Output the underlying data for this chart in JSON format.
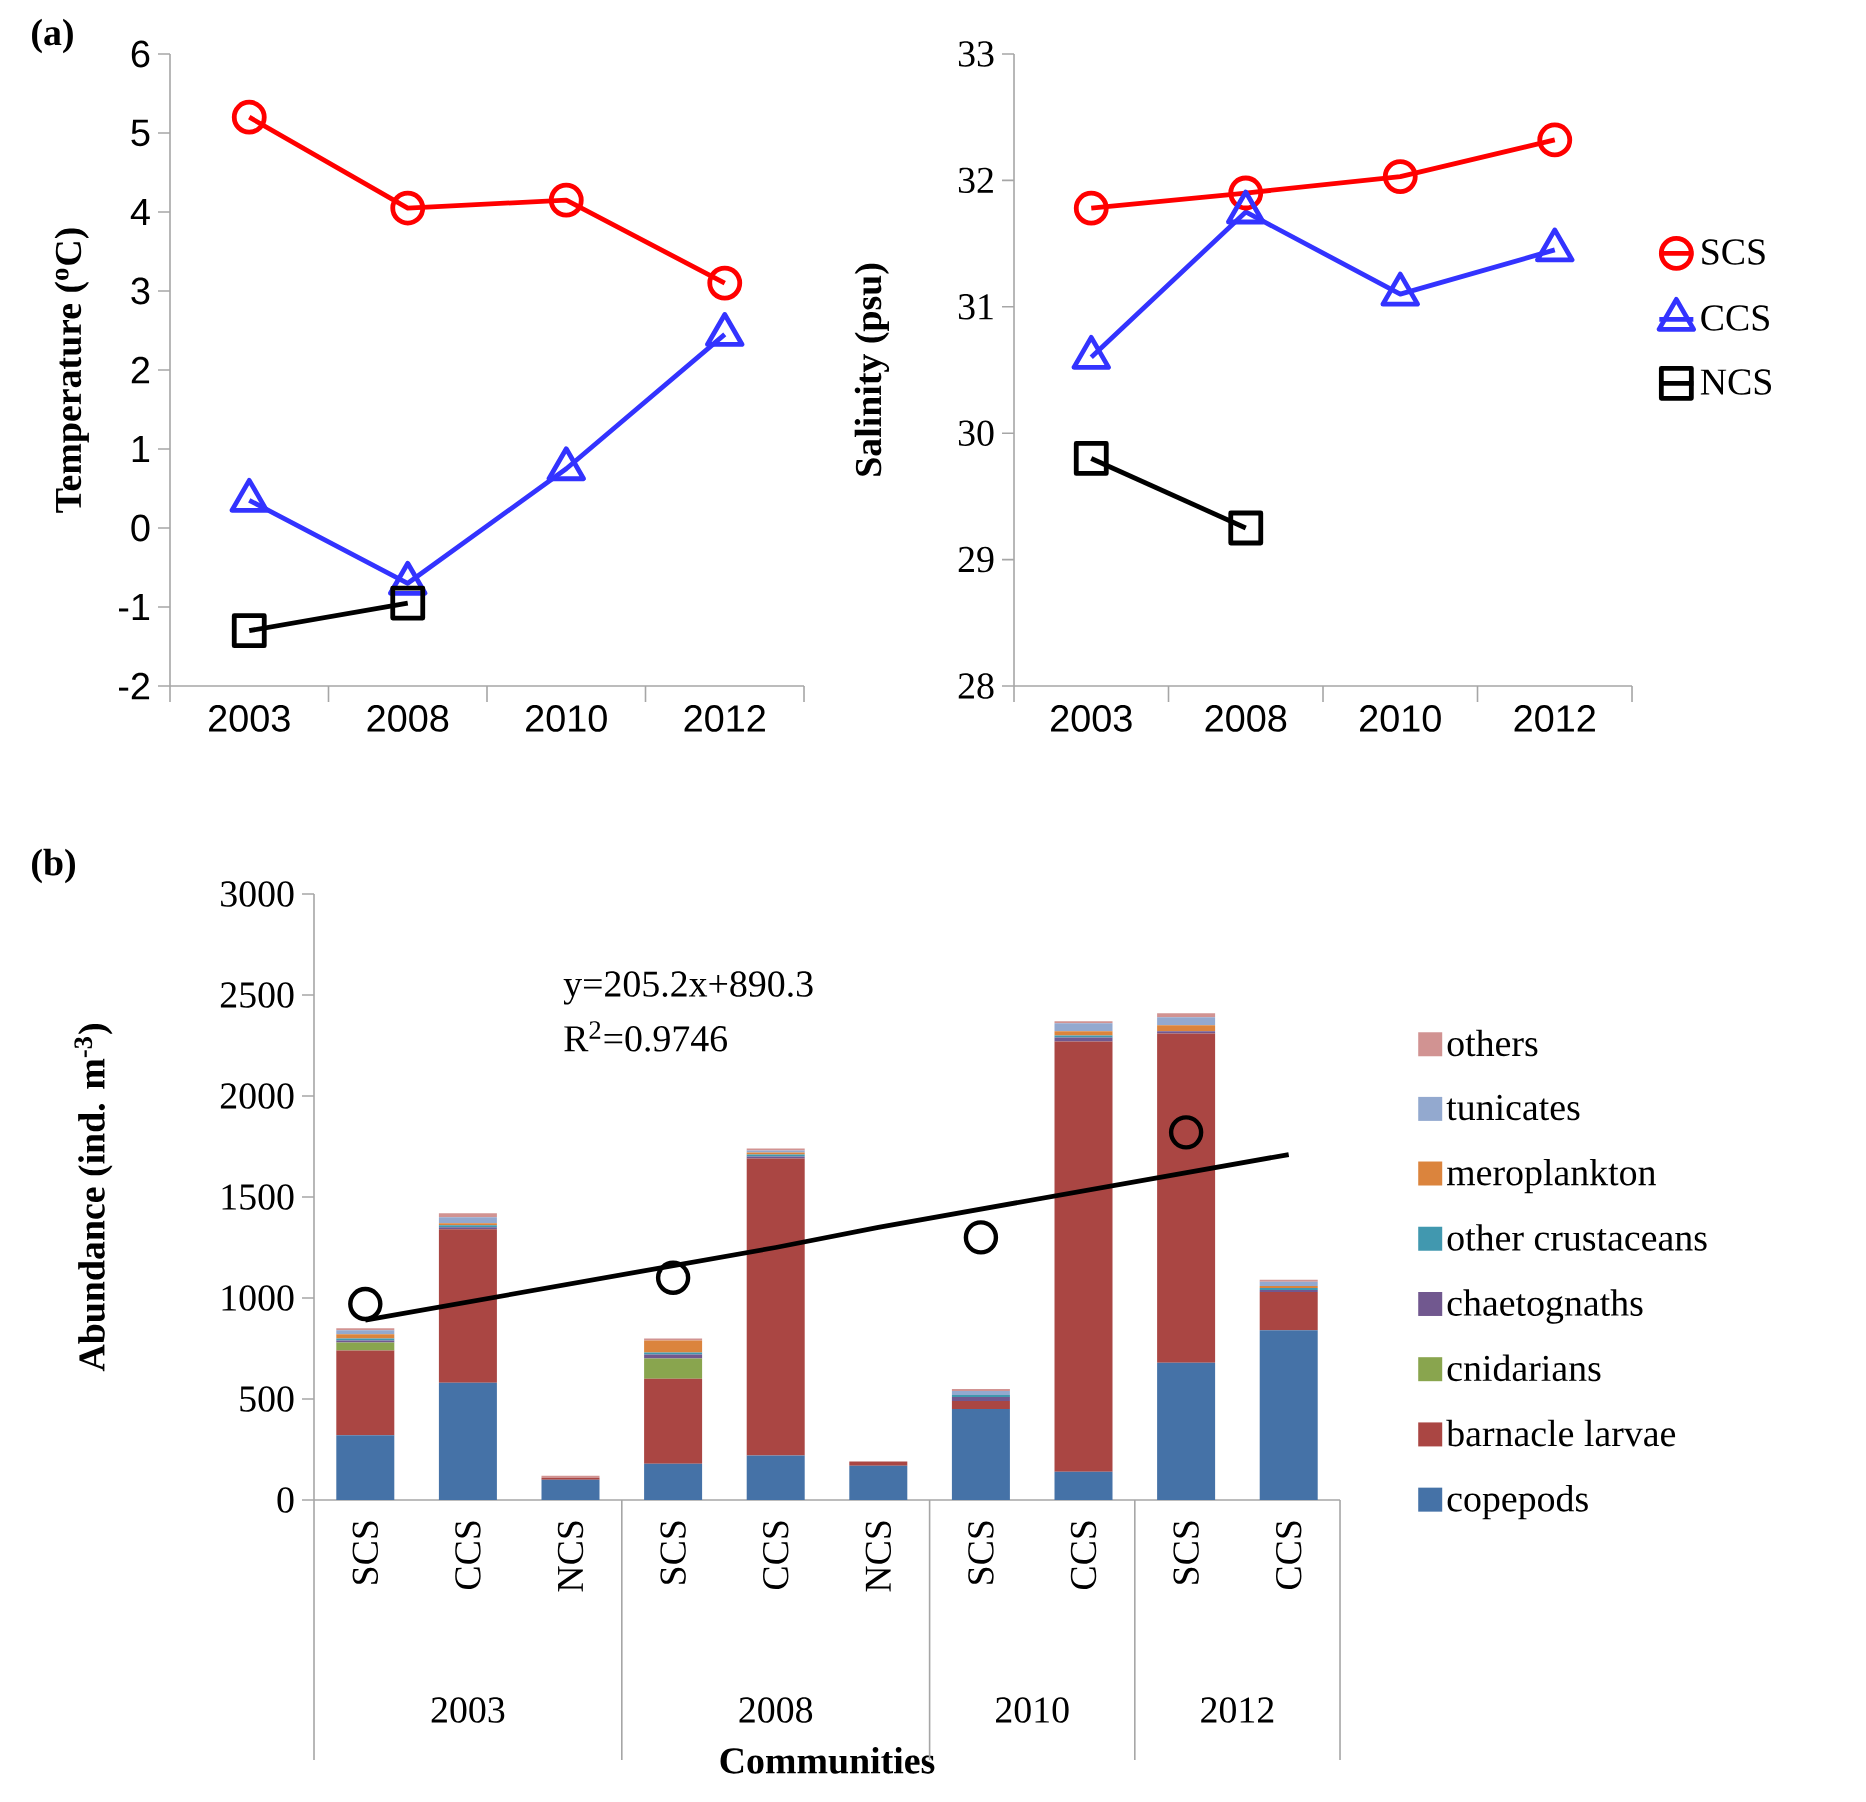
{
  "chart_data": [
    {
      "type": "line",
      "title": "(a)",
      "ylabel": "Temperature ($^{o}$C)",
      "categories": [
        "2003",
        "2008",
        "2010",
        "2012"
      ],
      "ylim": [
        -2,
        6
      ],
      "yticks": [
        -2,
        -1,
        0,
        1,
        2,
        3,
        4,
        5,
        6
      ],
      "series": [
        {
          "color": "#ff0000",
          "marker": "circle",
          "values": [
            5.2,
            4.05,
            4.15,
            3.1
          ]
        },
        {
          "color": "#3333ff",
          "marker": "triangle",
          "values": [
            0.35,
            -0.7,
            0.75,
            2.45
          ]
        },
        {
          "color": "#000000",
          "marker": "square",
          "values": [
            -1.3,
            -0.95,
            null,
            null
          ]
        }
      ]
    },
    {
      "type": "line",
      "ylabel": "Salinity (psu)",
      "categories": [
        "2003",
        "2008",
        "2010",
        "2012"
      ],
      "ylim": [
        28,
        33
      ],
      "yticks": [
        28,
        29,
        30,
        31,
        32,
        33
      ],
      "legend": "right",
      "series": [
        {
          "name": "SCS",
          "color": "#ff0000",
          "marker": "circle",
          "values": [
            31.78,
            31.9,
            32.03,
            32.32
          ]
        },
        {
          "name": "CCS",
          "color": "#3333ff",
          "marker": "triangle",
          "values": [
            30.6,
            31.75,
            31.1,
            31.45
          ]
        },
        {
          "name": "NCS",
          "color": "#000000",
          "marker": "square",
          "values": [
            29.8,
            29.25,
            null,
            null
          ]
        }
      ]
    },
    {
      "type": "bar",
      "stacked": true,
      "title": "(b)",
      "xlabel": "Communities",
      "ylabel": "Abundance (ind. m$^{-3}$)",
      "categories": [
        "SCS",
        "CCS",
        "NCS",
        "SCS",
        "CCS",
        "NCS",
        "SCS",
        "CCS",
        "SCS",
        "CCS"
      ],
      "ylim": [
        0,
        3000
      ],
      "yticks": [
        0,
        500,
        1000,
        1500,
        2000,
        2500,
        3000
      ],
      "legend": "right",
      "annotations": [
        "y=205.2x+890.3",
        "R$^{2}$=0.9746",
        "2003",
        "2008",
        "2010",
        "2012"
      ],
      "series": [
        {
          "name": "copepods",
          "color": "#4572a7",
          "values": [
            320,
            580,
            100,
            180,
            220,
            170,
            450,
            140,
            680,
            840
          ]
        },
        {
          "name": "barnacle larvae",
          "color": "#aa4643",
          "values": [
            420,
            760,
            10,
            420,
            1470,
            20,
            40,
            2130,
            1630,
            190
          ]
        },
        {
          "name": "cnidarians",
          "color": "#89a54e",
          "values": [
            40,
            0,
            0,
            100,
            0,
            0,
            0,
            0,
            0,
            0
          ]
        },
        {
          "name": "chaetognaths",
          "color": "#71588f",
          "values": [
            10,
            10,
            0,
            20,
            10,
            0,
            20,
            20,
            10,
            10
          ]
        },
        {
          "name": "other crustaceans",
          "color": "#4198af",
          "values": [
            10,
            10,
            0,
            10,
            10,
            0,
            10,
            10,
            0,
            10
          ]
        },
        {
          "name": "meroplankton",
          "color": "#db843d",
          "values": [
            20,
            10,
            0,
            60,
            10,
            0,
            0,
            20,
            30,
            10
          ]
        },
        {
          "name": "tunicates",
          "color": "#93a9cf",
          "values": [
            20,
            30,
            0,
            0,
            10,
            0,
            20,
            40,
            40,
            20
          ]
        },
        {
          "name": "others",
          "color": "#d19392",
          "values": [
            10,
            20,
            10,
            10,
            10,
            0,
            10,
            10,
            20,
            10
          ]
        },
        {
          "type": "line",
          "color": "#000000",
          "values": [
            890,
            980,
            1070,
            1160,
            1250,
            1350,
            1440,
            1530,
            1620,
            1710
          ]
        },
        {
          "type": "scatter",
          "color": "#000000",
          "marker": "circle",
          "values": [
            970,
            null,
            null,
            1100,
            null,
            null,
            1300,
            null,
            1820,
            null
          ]
        }
      ]
    }
  ]
}
